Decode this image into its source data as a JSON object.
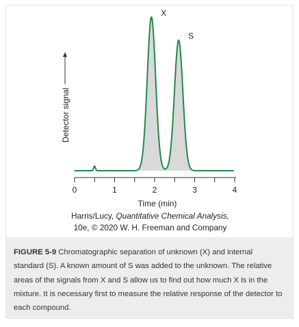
{
  "chart_data": {
    "type": "line",
    "xlabel": "Time (min)",
    "ylabel": "Detector signal",
    "xlim": [
      0,
      4
    ],
    "x_ticks": [
      "0",
      "1",
      "2",
      "3",
      "4"
    ],
    "x_tick_values": [
      0,
      1,
      2,
      3,
      4
    ],
    "ylim": [
      0,
      1
    ],
    "y_ticks_shown": false,
    "grid": false,
    "series": [
      {
        "peaks": [
          {
            "label": "X",
            "time": 1.92,
            "height": 1.0,
            "shaded": true
          },
          {
            "label": "S",
            "time": 2.6,
            "height": 0.85,
            "shaded": true
          },
          {
            "label": "",
            "time": 0.5,
            "height": 0.03,
            "shaded": false
          }
        ]
      }
    ],
    "colors": {
      "line": "#1e8a4c",
      "fill": "#d9d9d9",
      "axis": "#333333"
    }
  },
  "credit": {
    "line1_prefix": "Harris/Lucy,",
    "line1_book": "Quantitative Chemical Analysis,",
    "line2": "10e, © 2020 W. H. Freeman and Company"
  },
  "caption": {
    "label": "FIGURE 5-9",
    "text": "Chromatographic separation of unknown (X) and internal standard (S). A known amount of S was added to the unknown. The relative areas of the signals from X and S allow us to find out how much X is in the mixture. It is necessary first to measure the relative response of the detector to each compound."
  }
}
